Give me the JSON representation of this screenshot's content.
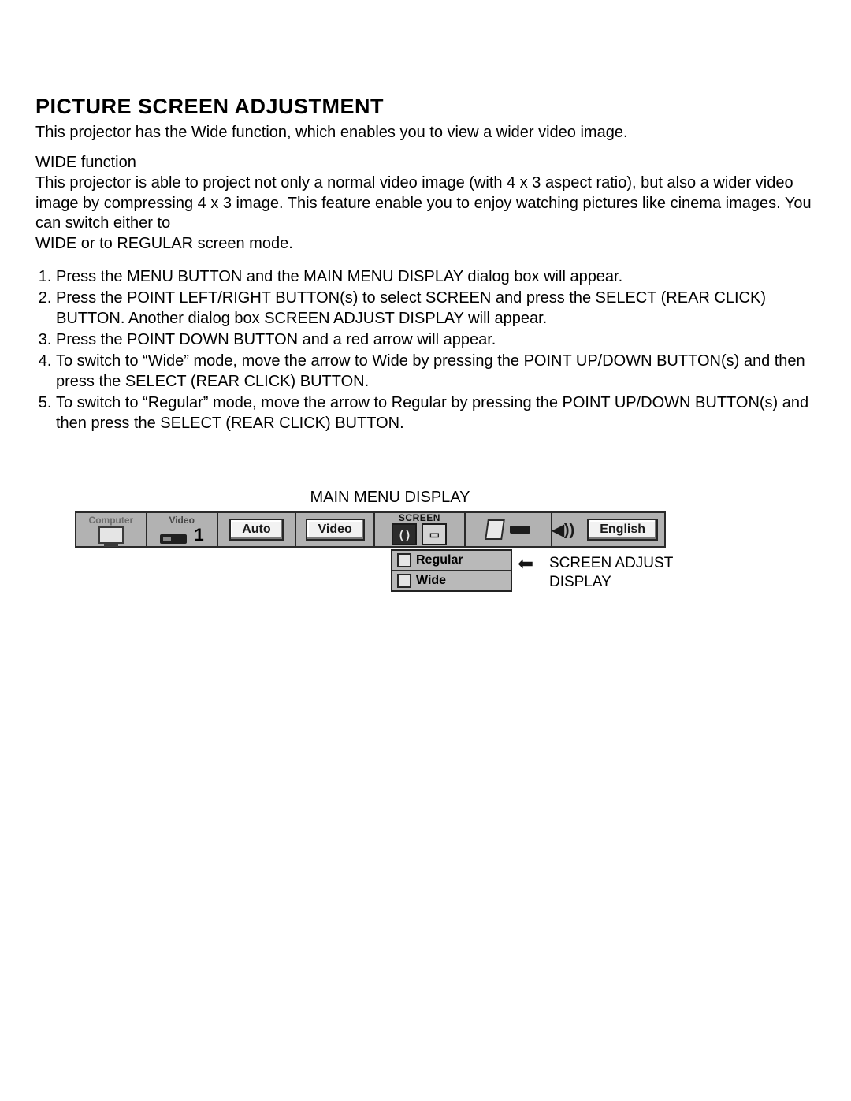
{
  "title": "PICTURE SCREEN ADJUSTMENT",
  "intro": "This projector has the Wide function, which enables you to view a wider video image.",
  "subhead": "WIDE function",
  "body": "This projector is able to project not only a normal video image (with 4 x 3 aspect ratio), but also a wider video image by compressing 4 x 3 image. This feature enable you to enjoy watching pictures like cinema images. You can switch either to",
  "body_tail": "WIDE or to REGULAR screen mode.",
  "steps": [
    "Press the MENU BUTTON and the MAIN MENU DISPLAY dialog box will appear.",
    "Press the POINT LEFT/RIGHT BUTTON(s) to select SCREEN and press the SELECT (REAR CLICK) BUTTON. Another dialog box SCREEN ADJUST DISPLAY will appear.",
    "Press the POINT DOWN BUTTON and a red arrow will appear.",
    "To switch to “Wide” mode, move the arrow to Wide by pressing the POINT UP/DOWN BUTTON(s) and then press the SELECT (REAR CLICK) BUTTON.",
    "To switch to “Regular” mode, move the arrow to Regular by pressing the POINT UP/DOWN BUTTON(s) and then press the SELECT (REAR CLICK) BUTTON."
  ],
  "figure": {
    "caption": "MAIN MENU DISPLAY",
    "cells": {
      "computer": "Computer",
      "video": "Video",
      "source_index": "1",
      "auto": "Auto",
      "video_btn": "Video",
      "screen_header": "SCREEN",
      "language": "English"
    },
    "dropdown": {
      "opt1": "Regular",
      "opt2": "Wide"
    },
    "side_label_line1": "SCREEN ADJUST",
    "side_label_line2": "DISPLAY",
    "colors": {
      "panel_bg": "#b2b2b2",
      "border": "#2a2a2a",
      "button_face": "#f2f2f2",
      "text": "#000000"
    }
  }
}
